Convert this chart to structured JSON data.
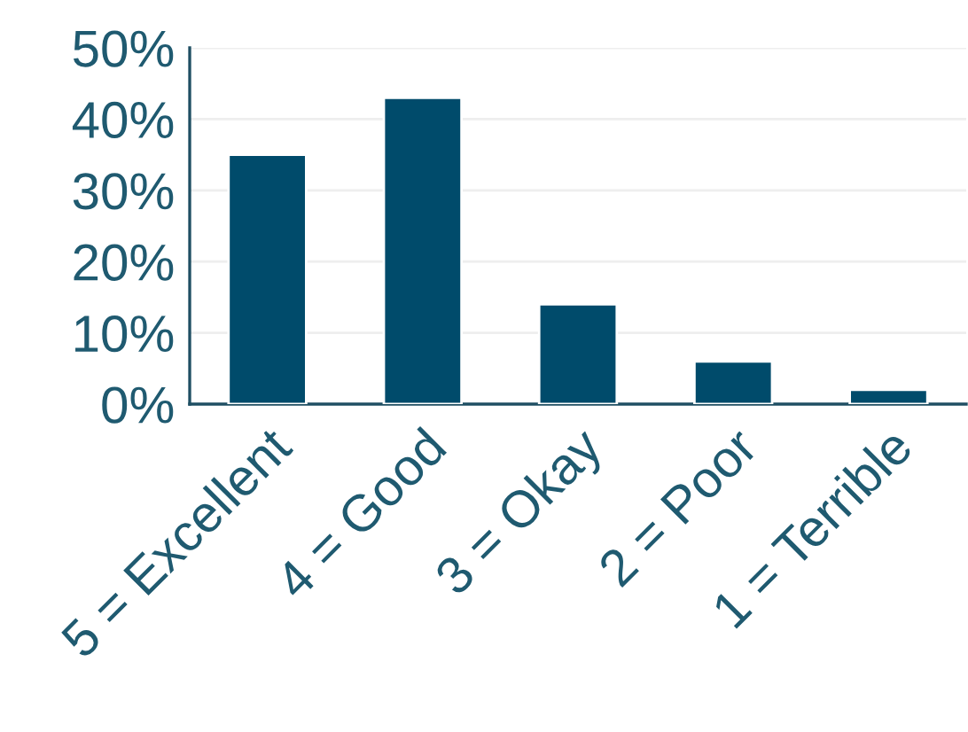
{
  "chart_data": {
    "type": "bar",
    "categories": [
      "5 = Excellent",
      "4 = Good",
      "3 = Okay",
      "2 = Poor",
      "1 = Terrible"
    ],
    "values": [
      35,
      43,
      14,
      6,
      2
    ],
    "color": "#004b6b",
    "ylim": [
      0,
      50
    ],
    "yticks": [
      {
        "value": 0,
        "label": "0%"
      },
      {
        "value": 10,
        "label": "10%"
      },
      {
        "value": 20,
        "label": "20%"
      },
      {
        "value": 30,
        "label": "30%"
      },
      {
        "value": 40,
        "label": "40%"
      },
      {
        "value": 50,
        "label": "50%"
      }
    ],
    "grid": "y"
  }
}
